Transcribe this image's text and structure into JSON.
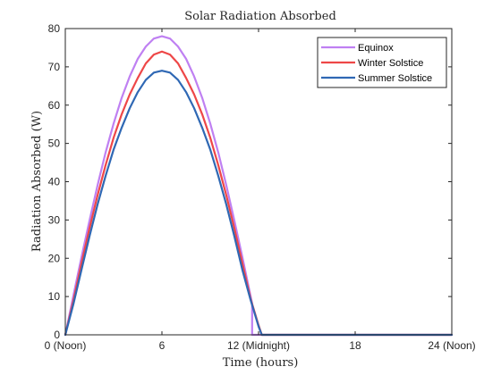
{
  "chart_data": {
    "type": "line",
    "title": "Solar Radiation Absorbed",
    "xlabel": "Time (hours)",
    "ylabel": "Radiation Absorbed (W)",
    "xlim": [
      0,
      24
    ],
    "ylim": [
      0,
      80
    ],
    "x_ticks": [
      {
        "value": 0,
        "label": "0 (Noon)"
      },
      {
        "value": 6,
        "label": "6"
      },
      {
        "value": 12,
        "label": "12 (Midnight)"
      },
      {
        "value": 18,
        "label": "18"
      },
      {
        "value": 24,
        "label": "24 (Noon)"
      }
    ],
    "y_ticks": [
      0,
      10,
      20,
      30,
      40,
      50,
      60,
      70,
      80
    ],
    "grid": false,
    "legend_position": "top-right",
    "series": [
      {
        "name": "Equinox",
        "color": "#BF80F2",
        "x": [
          0,
          0.5,
          1,
          1.5,
          2,
          2.5,
          3,
          3.5,
          4,
          4.5,
          5,
          5.5,
          6,
          6.5,
          7,
          7.5,
          8,
          8.5,
          9,
          9.5,
          10,
          10.5,
          11,
          11.5,
          11.6,
          11.6,
          12,
          14,
          16,
          18,
          20,
          22,
          24
        ],
        "y": [
          0,
          10.2,
          20.2,
          29.8,
          39.0,
          47.6,
          55.2,
          61.9,
          67.5,
          72.1,
          75.3,
          77.4,
          78.0,
          77.4,
          75.3,
          72.1,
          67.5,
          61.9,
          55.2,
          47.6,
          39.0,
          29.8,
          20.2,
          10.2,
          8.2,
          0,
          0,
          0,
          0,
          0,
          0,
          0,
          0
        ]
      },
      {
        "name": "Winter Solstice",
        "color": "#EE4747",
        "x": [
          0,
          0.5,
          1,
          1.5,
          2,
          2.5,
          3,
          3.5,
          4,
          4.5,
          5,
          5.5,
          6,
          6.5,
          7,
          7.5,
          8,
          8.5,
          9,
          9.5,
          10,
          10.5,
          11,
          11.5,
          12,
          12.2,
          14,
          16,
          18,
          20,
          22,
          24
        ],
        "y": [
          0,
          8.9,
          18.6,
          27.8,
          36.4,
          44.3,
          51.5,
          57.6,
          62.8,
          67.1,
          70.9,
          73.2,
          74.0,
          73.2,
          70.9,
          67.1,
          62.8,
          57.6,
          51.5,
          44.3,
          36.4,
          27.8,
          18.6,
          9.5,
          2.5,
          0,
          0,
          0,
          0,
          0,
          0,
          0
        ]
      },
      {
        "name": "Summer Solstice",
        "color": "#2F68B4",
        "x": [
          0,
          0.5,
          1,
          1.5,
          2,
          2.5,
          3,
          3.5,
          4,
          4.5,
          5,
          5.5,
          6,
          6.5,
          7,
          7.5,
          8,
          8.5,
          9,
          9.5,
          10,
          10.5,
          11,
          11.5,
          12,
          12.2,
          14,
          16,
          18,
          20,
          22,
          24
        ],
        "y": [
          0,
          8.0,
          16.9,
          25.7,
          34.0,
          41.5,
          48.4,
          54.1,
          59.2,
          63.4,
          66.6,
          68.5,
          69.0,
          68.5,
          66.6,
          63.4,
          59.2,
          54.1,
          48.4,
          41.5,
          34.0,
          25.7,
          16.9,
          9.2,
          2.2,
          0,
          0,
          0,
          0,
          0,
          0,
          0
        ]
      }
    ]
  }
}
